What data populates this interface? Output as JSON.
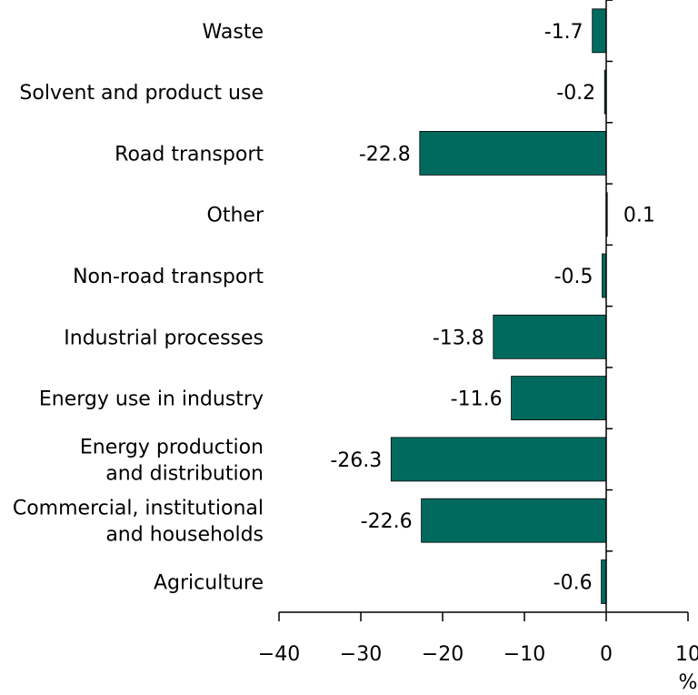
{
  "chart_data": {
    "type": "bar",
    "orientation": "horizontal",
    "categories": [
      [
        "Waste"
      ],
      [
        "Solvent and product use"
      ],
      [
        "Road transport"
      ],
      [
        "Other"
      ],
      [
        "Non-road transport"
      ],
      [
        "Industrial processes"
      ],
      [
        "Energy use in industry"
      ],
      [
        "Energy production",
        "and distribution"
      ],
      [
        "Commercial, institutional",
        "and households"
      ],
      [
        "Agriculture"
      ]
    ],
    "values": [
      -1.7,
      -0.2,
      -22.8,
      0.1,
      -0.5,
      -13.8,
      -11.6,
      -26.3,
      -22.6,
      -0.6
    ],
    "value_labels": [
      "-1.7",
      "-0.2",
      "-22.8",
      "0.1",
      "-0.5",
      "-13.8",
      "-11.6",
      "-26.3",
      "-22.6",
      "-0.6"
    ],
    "xlim": [
      -40,
      10
    ],
    "xticks": [
      -40,
      -30,
      -20,
      -10,
      0,
      10
    ],
    "xtick_labels": [
      "−40",
      "−30",
      "−20",
      "−10",
      "0",
      "10"
    ],
    "xlabel": "%",
    "title": "",
    "bar_color": "#006a5f",
    "grid": false
  }
}
